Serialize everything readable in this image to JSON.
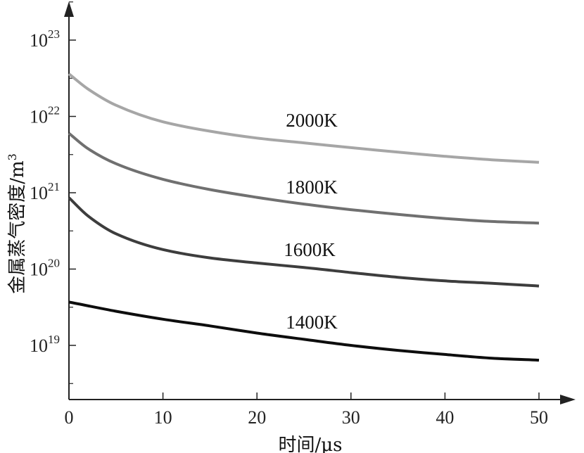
{
  "chart_data": {
    "type": "line",
    "title": "",
    "xlabel": "时间/μs",
    "ylabel": "金属蒸气密度/m",
    "ylabel_superscript": "3",
    "x_ticks": [
      "0",
      "10",
      "20",
      "30",
      "40",
      "50"
    ],
    "y_ticks": [
      {
        "base": "10",
        "exp": "19"
      },
      {
        "base": "10",
        "exp": "20"
      },
      {
        "base": "10",
        "exp": "21"
      },
      {
        "base": "10",
        "exp": "22"
      },
      {
        "base": "10",
        "exp": "23"
      }
    ],
    "xlim": [
      0,
      50
    ],
    "ylim_log10": [
      18.4,
      23.4
    ],
    "yscale": "log",
    "grid": false,
    "series": [
      {
        "name": "2000K",
        "color": "#a6a6a6",
        "x": [
          0,
          2,
          5,
          10,
          15,
          20,
          25,
          30,
          35,
          40,
          45,
          50
        ],
        "y": [
          3.6e+22,
          2.3e+22,
          1.4e+22,
          8.5e+21,
          6.4e+21,
          5.2e+21,
          4.5e+21,
          3.9e+21,
          3.4e+21,
          3e+21,
          2.7e+21,
          2.5e+21
        ]
      },
      {
        "name": "1800K",
        "color": "#707070",
        "x": [
          0,
          2,
          5,
          10,
          15,
          20,
          25,
          30,
          35,
          40,
          45,
          50
        ],
        "y": [
          6e+21,
          3.8e+21,
          2.4e+21,
          1.5e+21,
          1.1e+21,
          8.7e+20,
          7.1e+20,
          6e+20,
          5.2e+20,
          4.6e+20,
          4.2e+20,
          4e+20
        ]
      },
      {
        "name": "1600K",
        "color": "#3d3d3d",
        "x": [
          0,
          2,
          5,
          10,
          15,
          20,
          25,
          30,
          35,
          40,
          45,
          50
        ],
        "y": [
          8.6e+20,
          5e+20,
          2.9e+20,
          1.8e+20,
          1.4e+20,
          1.2e+20,
          1.05e+20,
          9e+19,
          7.8e+19,
          7e+19,
          6.5e+19,
          6e+19
        ]
      },
      {
        "name": "1400K",
        "color": "#0d0d0d",
        "x": [
          0,
          5,
          10,
          15,
          20,
          25,
          30,
          35,
          40,
          45,
          50
        ],
        "y": [
          3.7e+19,
          2.8e+19,
          2.2e+19,
          1.8e+19,
          1.45e+19,
          1.2e+19,
          1e+19,
          8.6e+18,
          7.6e+18,
          6.8e+18,
          6.4e+18
        ]
      }
    ]
  }
}
